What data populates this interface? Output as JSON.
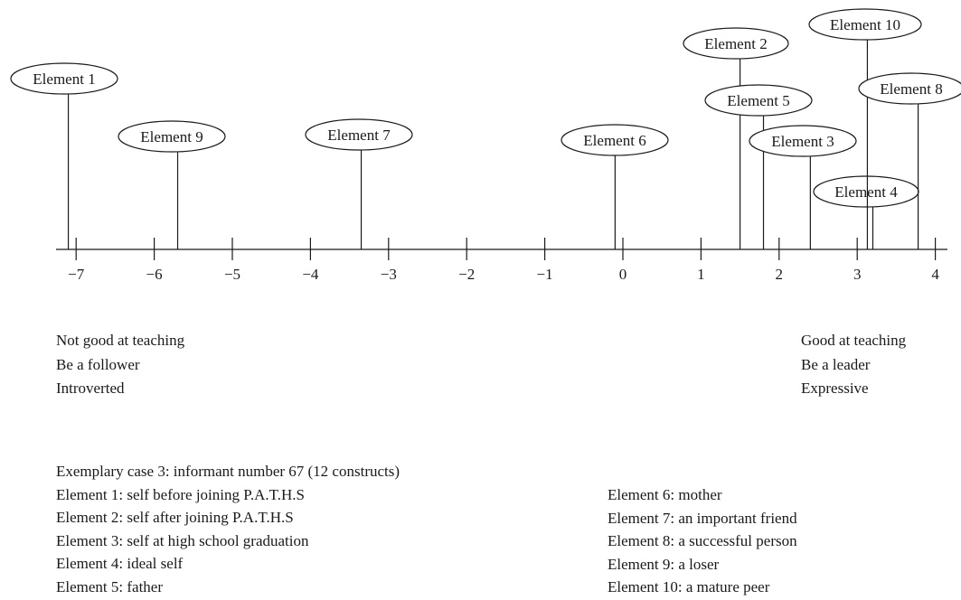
{
  "chart_data": {
    "type": "scatter",
    "axis": {
      "ticks": [
        -7,
        -6,
        -5,
        -4,
        -3,
        -2,
        -1,
        0,
        1,
        2,
        3,
        4
      ],
      "tick_labels": [
        "−7",
        "−6",
        "−5",
        "−4",
        "−3",
        "−2",
        "−1",
        "0",
        "1",
        "2",
        "3",
        "4"
      ],
      "xlim": [
        -7.1,
        4.3
      ]
    },
    "points": [
      {
        "label": "Element 1",
        "x": -7.1
      },
      {
        "label": "Element 9",
        "x": -5.7
      },
      {
        "label": "Element 7",
        "x": -3.35
      },
      {
        "label": "Element 6",
        "x": -0.1
      },
      {
        "label": "Element 2",
        "x": 1.5
      },
      {
        "label": "Element 5",
        "x": 1.8
      },
      {
        "label": "Element 3",
        "x": 2.4
      },
      {
        "label": "Element 4",
        "x": 3.2
      },
      {
        "label": "Element 10",
        "x": 3.13
      },
      {
        "label": "Element 8",
        "x": 3.78
      }
    ]
  },
  "poles": {
    "left": [
      "Not good at teaching",
      "Be a follower",
      "Introverted"
    ],
    "right": [
      "Good at teaching",
      "Be a leader",
      "Expressive"
    ]
  },
  "legend": {
    "title": "Exemplary case 3: informant number 67 (12 constructs)",
    "left": [
      "Element 1: self before joining P.A.T.H.S",
      "Element 2: self after joining P.A.T.H.S",
      "Element 3: self at high school graduation",
      "Element 4: ideal self",
      "Element 5: father"
    ],
    "right": [
      "Element 6: mother",
      "Element 7: an important friend",
      "Element 8: a successful person",
      "Element 9: a loser",
      "Element 10: a mature peer"
    ]
  }
}
